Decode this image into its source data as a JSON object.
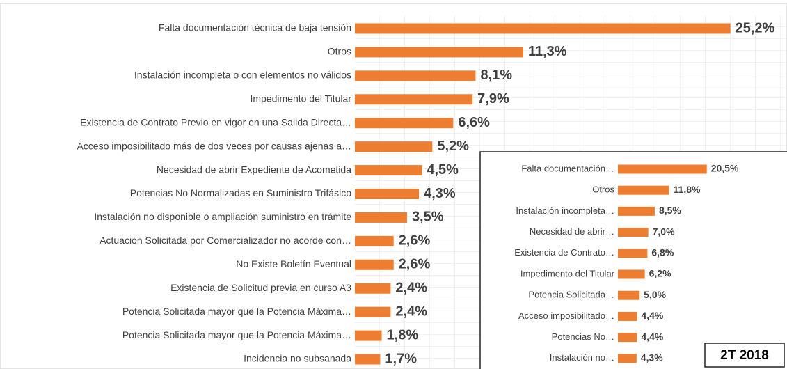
{
  "chart_data": [
    {
      "type": "bar",
      "orientation": "horizontal",
      "color": "#ed7d31",
      "grid": true,
      "xlim": [
        0,
        29
      ],
      "categories": [
        "Falta documentación técnica de baja tensión",
        "Otros",
        "Instalación incompleta o con elementos no válidos",
        "Impedimento del Titular",
        "Existencia de Contrato Previo en vigor en una Salida Directa…",
        "Acceso imposibilitado más de dos veces por causas ajenas a…",
        "Necesidad de abrir Expediente de Acometida",
        "Potencias No Normalizadas en Suministro Trifásico",
        "Instalación no disponible o ampliación suministro en trámite",
        "Actuación Solicitada por Comercializador no acorde con…",
        "No Existe Boletín Eventual",
        "Existencia de Solicitud previa en curso A3",
        "Potencia Solicitada mayor que la Potencia Máxima…",
        "Potencia Solicitada mayor que la Potencia Máxima…",
        "Incidencia no subsanada"
      ],
      "values": [
        25.2,
        11.3,
        8.1,
        7.9,
        6.6,
        5.2,
        4.5,
        4.3,
        3.5,
        2.6,
        2.6,
        2.4,
        2.4,
        1.8,
        1.7
      ],
      "value_labels": [
        "25,2%",
        "11,3%",
        "8,1%",
        "7,9%",
        "6,6%",
        "5,2%",
        "4,5%",
        "4,3%",
        "3,5%",
        "2,6%",
        "2,6%",
        "2,4%",
        "2,4%",
        "1,8%",
        "1,7%"
      ]
    },
    {
      "type": "bar",
      "orientation": "horizontal",
      "color": "#ed7d31",
      "xlim": [
        0,
        39
      ],
      "categories": [
        "Falta documentación…",
        "Otros",
        "Instalación incompleta…",
        "Necesidad de abrir…",
        "Existencia de Contrato…",
        "Impedimento del Titular",
        "Potencia Solicitada…",
        "Acceso imposibilitado…",
        "Potencias No…",
        "Instalación no…"
      ],
      "values": [
        20.5,
        11.8,
        8.5,
        7.0,
        6.8,
        6.2,
        5.0,
        4.4,
        4.4,
        4.3
      ],
      "value_labels": [
        "20,5%",
        "11,8%",
        "8,5%",
        "7,0%",
        "6,8%",
        "6,2%",
        "5,0%",
        "4,4%",
        "4,4%",
        "4,3%"
      ],
      "annotation": "2T 2018"
    }
  ]
}
